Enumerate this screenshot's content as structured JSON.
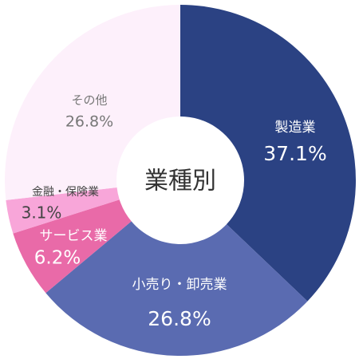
{
  "chart_data": {
    "type": "donut",
    "title": "業種別",
    "categories": [
      "製造業",
      "小売り・卸売業",
      "サービス業",
      "金融・保険業",
      "その他"
    ],
    "values": [
      37.1,
      26.8,
      6.2,
      3.1,
      26.8
    ],
    "value_labels": [
      "37.1%",
      "26.8%",
      "6.2%",
      "3.1%",
      "26.8%"
    ],
    "colors": [
      "#2b4283",
      "#5a6bb1",
      "#e96aa8",
      "#f8a6d9",
      "#fdf0fb"
    ]
  }
}
